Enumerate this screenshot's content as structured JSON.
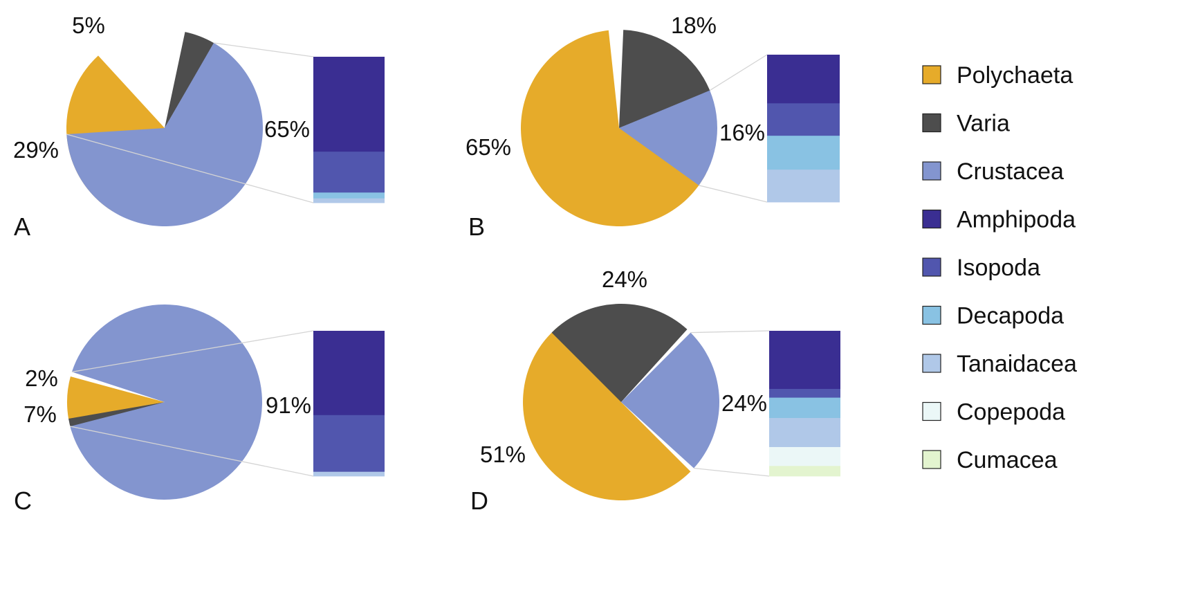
{
  "colors": {
    "Polychaeta": "#E6AB2A",
    "Varia": "#4D4D4D",
    "Crustacea": "#8395CF",
    "Amphipoda": "#3A2E92",
    "Isopoda": "#5156AE",
    "Decapoda": "#89C2E3",
    "Tanaidacea": "#B0C8E8",
    "Copepoda": "#EBF7F7",
    "Cumacea": "#E3F4CF"
  },
  "legend": {
    "items": [
      "Polychaeta",
      "Varia",
      "Crustacea",
      "Amphipoda",
      "Isopoda",
      "Decapoda",
      "Tanaidacea",
      "Copepoda",
      "Cumacea"
    ]
  },
  "chart_data": [
    {
      "type": "pie",
      "panel": "A",
      "slices": [
        {
          "category": "Polychaeta",
          "value": 29,
          "label": "29%"
        },
        {
          "category": "Varia",
          "value": 5,
          "label": "5%"
        },
        {
          "category": "Crustacea",
          "value": 65,
          "label": "65%"
        }
      ],
      "breakdown_of": "Crustacea",
      "breakdown": [
        {
          "category": "Amphipoda",
          "value": 65
        },
        {
          "category": "Isopoda",
          "value": 28
        },
        {
          "category": "Decapoda",
          "value": 4
        },
        {
          "category": "Tanaidacea",
          "value": 3
        }
      ]
    },
    {
      "type": "pie",
      "panel": "B",
      "slices": [
        {
          "category": "Polychaeta",
          "value": 65,
          "label": "65%"
        },
        {
          "category": "Varia",
          "value": 18,
          "label": "18%"
        },
        {
          "category": "Crustacea",
          "value": 16,
          "label": "16%"
        }
      ],
      "breakdown_of": "Crustacea",
      "breakdown": [
        {
          "category": "Amphipoda",
          "value": 33
        },
        {
          "category": "Isopoda",
          "value": 22
        },
        {
          "category": "Decapoda",
          "value": 23
        },
        {
          "category": "Tanaidacea",
          "value": 22
        }
      ]
    },
    {
      "type": "pie",
      "panel": "C",
      "slices": [
        {
          "category": "Polychaeta",
          "value": 7,
          "label": "7%"
        },
        {
          "category": "Varia",
          "value": 2,
          "label": "2%"
        },
        {
          "category": "Crustacea",
          "value": 91,
          "label": "91%"
        }
      ],
      "breakdown_of": "Crustacea",
      "breakdown": [
        {
          "category": "Amphipoda",
          "value": 58
        },
        {
          "category": "Isopoda",
          "value": 39
        },
        {
          "category": "Tanaidacea",
          "value": 3
        }
      ]
    },
    {
      "type": "pie",
      "panel": "D",
      "slices": [
        {
          "category": "Polychaeta",
          "value": 51,
          "label": "51%"
        },
        {
          "category": "Varia",
          "value": 24,
          "label": "24%"
        },
        {
          "category": "Crustacea",
          "value": 24,
          "label": "24%"
        }
      ],
      "breakdown_of": "Crustacea",
      "breakdown": [
        {
          "category": "Amphipoda",
          "value": 40
        },
        {
          "category": "Isopoda",
          "value": 6
        },
        {
          "category": "Decapoda",
          "value": 14
        },
        {
          "category": "Tanaidacea",
          "value": 20
        },
        {
          "category": "Copepoda",
          "value": 13
        },
        {
          "category": "Cumacea",
          "value": 7
        }
      ]
    }
  ]
}
